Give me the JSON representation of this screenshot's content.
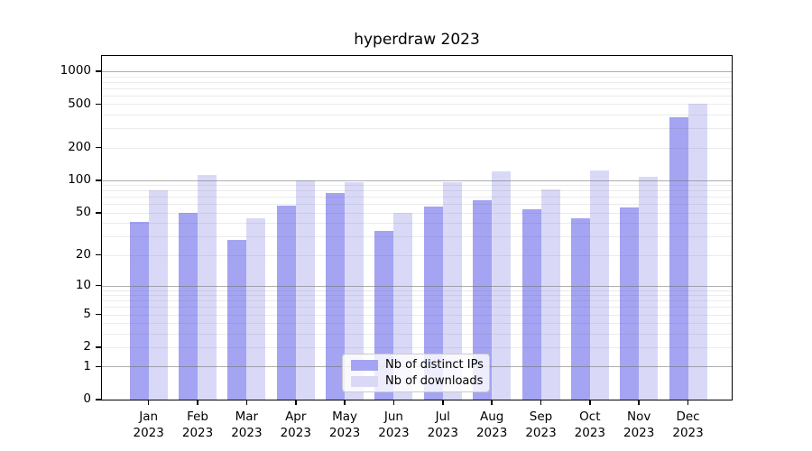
{
  "title": "hyperdraw 2023",
  "colors": {
    "bar_ips": "#a4a4f2",
    "bar_downloads": "#d9d9f7",
    "grid_major": "#6e6e6e",
    "grid_minor": "#dcdcdc",
    "axis": "#000000",
    "background": "#ffffff",
    "legend_border": "#cbcbcb"
  },
  "chart_data": {
    "type": "bar",
    "title": "hyperdraw 2023",
    "categories": [
      "Jan",
      "Feb",
      "Mar",
      "Apr",
      "May",
      "Jun",
      "Jul",
      "Aug",
      "Sep",
      "Oct",
      "Nov",
      "Dec"
    ],
    "year_label": "2023",
    "series": [
      {
        "name": "Nb of distinct IPs",
        "color_key": "bar_ips",
        "values": [
          41,
          50,
          28,
          58,
          76,
          34,
          57,
          65,
          54,
          44,
          56,
          380
        ]
      },
      {
        "name": "Nb of downloads",
        "color_key": "bar_downloads",
        "values": [
          80,
          112,
          44,
          100,
          96,
          50,
          96,
          120,
          82,
          123,
          108,
          500
        ]
      }
    ],
    "yscale": "log1p",
    "yticks": [
      0,
      1,
      2,
      5,
      10,
      20,
      50,
      100,
      200,
      500,
      1000
    ],
    "minor_grid_bases": [
      1,
      10,
      100
    ],
    "ylim": [
      0,
      1380
    ],
    "grid": true,
    "legend_position": "lower center"
  }
}
